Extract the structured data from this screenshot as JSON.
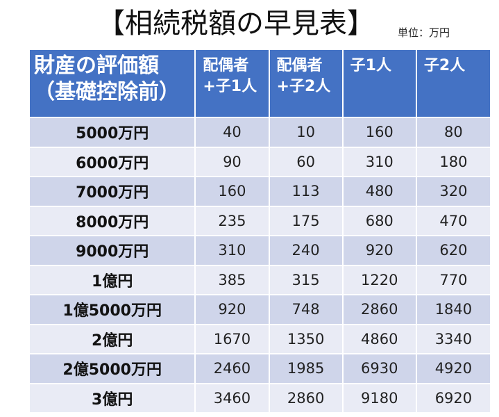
{
  "title": "【相続税額の早見表】",
  "unit": "単位：万円",
  "table": {
    "header": {
      "main_line1": "財産の評価額",
      "main_line2": "（基礎控除前）",
      "columns": [
        {
          "line1": "配偶者",
          "line2": "+子1人"
        },
        {
          "line1": "配偶者",
          "line2": "+子2人"
        },
        {
          "line1": "子1人",
          "line2": ""
        },
        {
          "line1": "子2人",
          "line2": ""
        }
      ]
    },
    "rows": [
      {
        "label": "5000万円",
        "values": [
          "40",
          "10",
          "160",
          "80"
        ]
      },
      {
        "label": "6000万円",
        "values": [
          "90",
          "60",
          "310",
          "180"
        ]
      },
      {
        "label": "7000万円",
        "values": [
          "160",
          "113",
          "480",
          "320"
        ]
      },
      {
        "label": "8000万円",
        "values": [
          "235",
          "175",
          "680",
          "470"
        ]
      },
      {
        "label": "9000万円",
        "values": [
          "310",
          "240",
          "920",
          "620"
        ]
      },
      {
        "label": "1億円",
        "values": [
          "385",
          "315",
          "1220",
          "770"
        ]
      },
      {
        "label": "1億5000万円",
        "values": [
          "920",
          "748",
          "2860",
          "1840"
        ]
      },
      {
        "label": "2億円",
        "values": [
          "1670",
          "1350",
          "4860",
          "3340"
        ]
      },
      {
        "label": "2億5000万円",
        "values": [
          "2460",
          "1985",
          "6930",
          "4920"
        ]
      },
      {
        "label": "3億円",
        "values": [
          "3460",
          "2860",
          "9180",
          "6920"
        ]
      }
    ]
  },
  "colors": {
    "header_bg": "#4472c4",
    "row_odd_bg": "#cfd5ea",
    "row_even_bg": "#e9ebf5"
  }
}
